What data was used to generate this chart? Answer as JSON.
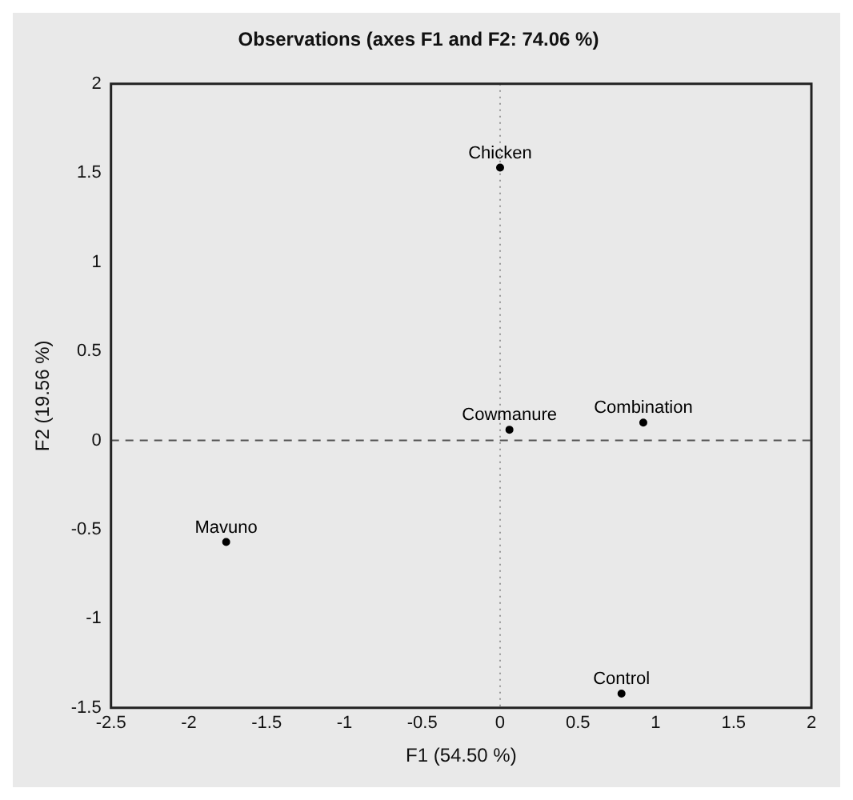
{
  "chart_data": {
    "type": "scatter",
    "title": "Observations (axes F1 and F2: 74.06 %)",
    "xlabel": "F1 (54.50 %)",
    "ylabel": "F2 (19.56 %)",
    "series": [
      {
        "name": "Chicken",
        "color": "#000000",
        "x": [
          0
        ],
        "values": [
          1.53
        ]
      },
      {
        "name": "Cowmanure",
        "color": "#000000",
        "x": [
          0.06
        ],
        "values": [
          0.06
        ]
      },
      {
        "name": "Combination",
        "color": "#000000",
        "x": [
          0.92
        ],
        "values": [
          0.1
        ]
      },
      {
        "name": "Mavuno",
        "color": "#000000",
        "x": [
          -1.76
        ],
        "values": [
          -0.57
        ]
      },
      {
        "name": "Control",
        "color": "#000000",
        "x": [
          0.78
        ],
        "values": [
          -1.42
        ]
      }
    ],
    "xlim": [
      -2.5,
      2
    ],
    "xticks": [
      -2.5,
      -2,
      -1.5,
      -1,
      -0.5,
      0,
      0.5,
      1,
      1.5,
      2
    ],
    "ylim": [
      -1.5,
      2
    ],
    "yticks": [
      -1.5,
      -1,
      -0.5,
      0,
      0.5,
      1,
      1.5,
      2
    ],
    "ref_lines": [
      {
        "axis": "x",
        "value": 0,
        "color": "#999999",
        "line_style": "dotted"
      },
      {
        "axis": "y",
        "value": 0,
        "color": "#555555",
        "line_style": "dashed"
      }
    ],
    "marker": "circle",
    "grid": false,
    "legend": false
  }
}
